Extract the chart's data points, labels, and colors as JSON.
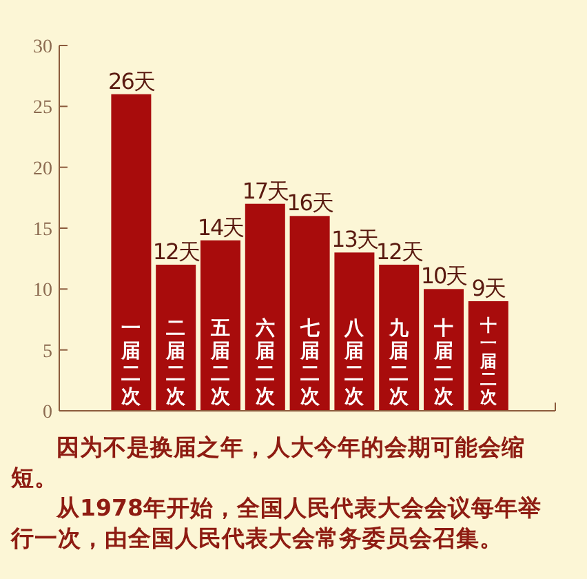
{
  "chart_data": {
    "type": "bar",
    "categories": [
      "一届二次",
      "二届二次",
      "五届二次",
      "六届二次",
      "七届二次",
      "八届二次",
      "九届二次",
      "十届二次",
      "十一届二次"
    ],
    "values": [
      26,
      12,
      14,
      17,
      16,
      13,
      12,
      10,
      9
    ],
    "value_labels": [
      "26天",
      "12天",
      "14天",
      "17天",
      "16天",
      "13天",
      "12天",
      "10天",
      "9天"
    ],
    "color": "#a80c0c",
    "ylim": [
      0,
      30
    ],
    "yticks": [
      0,
      5,
      10,
      15,
      20,
      25,
      30
    ],
    "grid": false,
    "annotations": [
      "因为不是换届之年，人大今年的会期可能会缩短。",
      "从1978年开始，全国人民代表大会会议每年举行一次，由全国人民代表大会常务委员会召集。"
    ]
  }
}
